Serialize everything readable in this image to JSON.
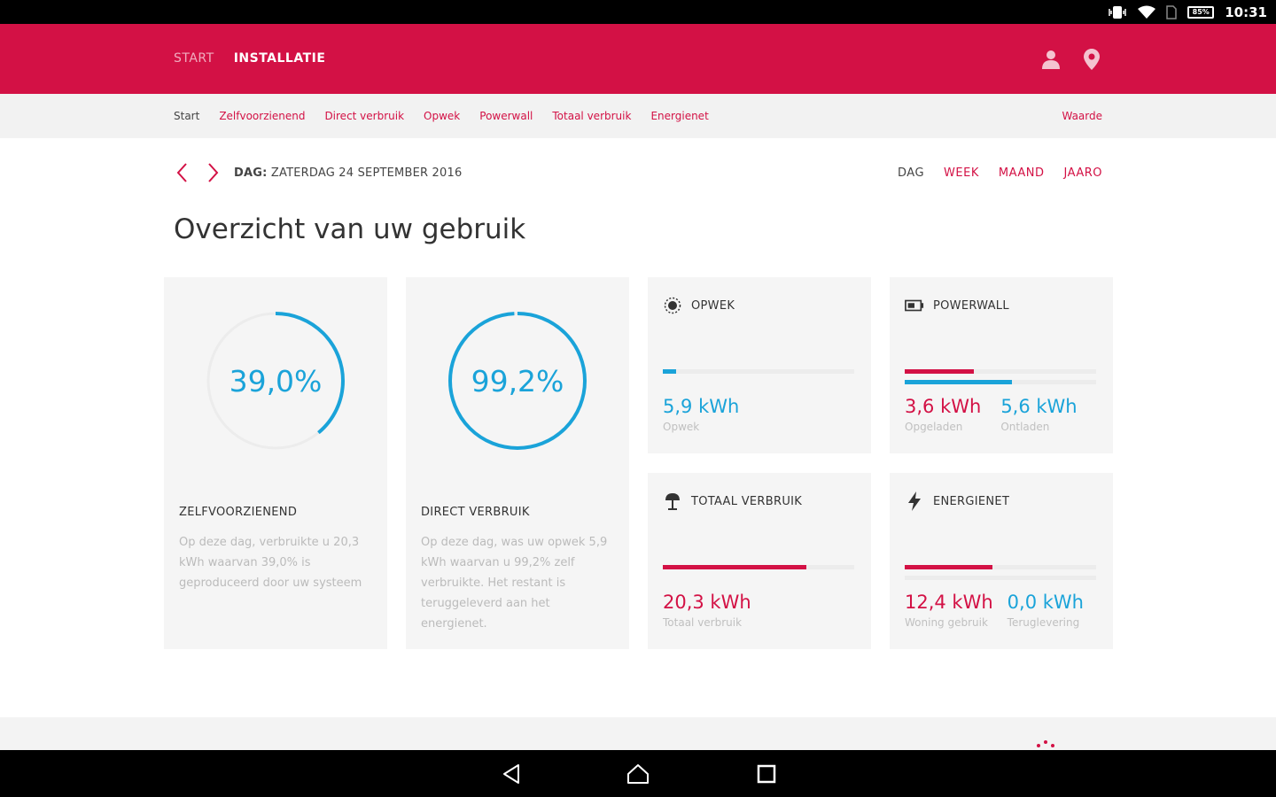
{
  "statusbar": {
    "battery": "85%",
    "time": "10:31",
    "icons": [
      "vibrate-icon",
      "wifi-icon",
      "sim-icon",
      "battery-icon"
    ]
  },
  "header": {
    "nav": [
      {
        "label": "START",
        "active": false
      },
      {
        "label": "INSTALLATIE",
        "active": true
      }
    ],
    "icons": [
      "user-icon",
      "location-pin-icon"
    ]
  },
  "subnav": {
    "links": [
      "Start",
      "Zelfvoorzienend",
      "Direct verbruik",
      "Opwek",
      "Powerwall",
      "Totaal verbruik",
      "Energienet"
    ],
    "current": "Start",
    "right_link": "Waarde"
  },
  "datebar": {
    "prefix": "DAG:",
    "date": "ZATERDAG 24 SEPTEMBER 2016",
    "periods": [
      "DAG",
      "WEEK",
      "MAAND",
      "JAARO"
    ],
    "active_period": "DAG"
  },
  "page_title": "Overzicht van uw gebruik",
  "cards": {
    "zelfvoorzienend": {
      "value": "39,0%",
      "fraction": 0.39,
      "title": "ZELFVOORZIENEND",
      "description": "Op deze dag, verbruikte u 20,3 kWh waarvan 39,0% is geproduceerd door uw systeem"
    },
    "direct": {
      "value": "99,2%",
      "fraction": 0.992,
      "title": "DIRECT VERBRUIK",
      "description": "Op deze dag, was uw opwek 5,9 kWh waarvan u 99,2% zelf verbruikte. Het restant is teruggeleverd aan het energienet."
    },
    "opwek": {
      "title": "OPWEK",
      "icon": "sun-icon",
      "bar_fraction": 0.07,
      "value": "5,9 kWh",
      "label": "Opwek"
    },
    "powerwall": {
      "title": "POWERWALL",
      "icon": "battery-icon",
      "bar_fractions": [
        0.36,
        0.56
      ],
      "values": [
        {
          "value": "3,6 kWh",
          "label": "Opgeladen",
          "color": "red"
        },
        {
          "value": "5,6 kWh",
          "label": "Ontladen",
          "color": "blue"
        }
      ]
    },
    "totaal": {
      "title": "TOTAAL VERBRUIK",
      "icon": "lamp-icon",
      "bar_fraction": 0.75,
      "value": "20,3 kWh",
      "label": "Totaal verbruik"
    },
    "energienet": {
      "title": "ENERGIENET",
      "icon": "lightning-icon",
      "bar_fraction": 0.46,
      "values": [
        {
          "value": "12,4 kWh",
          "label": "Woning gebruik",
          "color": "red"
        },
        {
          "value": "0,0 kWh",
          "label": "Teruglevering",
          "color": "blue"
        }
      ]
    }
  },
  "colors": {
    "accent": "#d31145",
    "blue": "#1aa3d9",
    "card_bg": "#f5f5f5"
  },
  "navbar": {
    "icons": [
      "back-icon",
      "home-icon",
      "recents-icon"
    ]
  }
}
